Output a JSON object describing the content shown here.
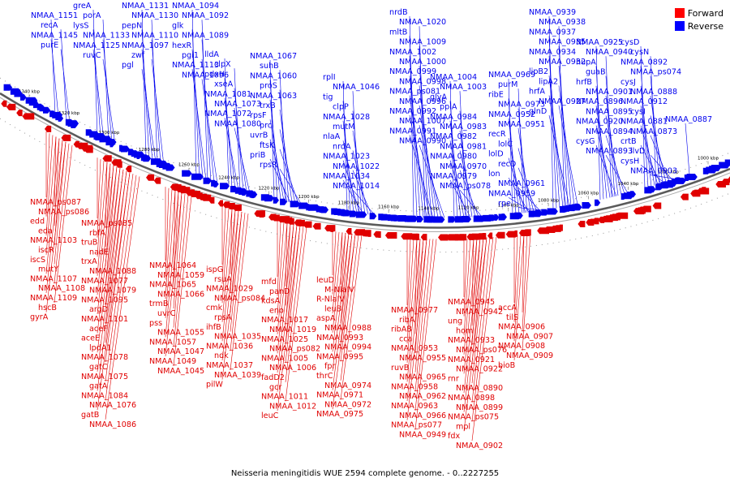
{
  "title": "Neisseria meningitidis WUE 2594 complete genome. - 0..2227255",
  "legend": [
    {
      "label": "Forward",
      "color": "#ff0000"
    },
    {
      "label": "Reverse",
      "color": "#0000ff"
    }
  ],
  "colors": {
    "forward": "#e00000",
    "reverse": "#0000ee",
    "backbone": "#666666"
  },
  "ticks": [
    "1340 kbp",
    "1320 kbp",
    "1300 kbp",
    "1280 kbp",
    "1260 kbp",
    "1240 kbp",
    "1220 kbp",
    "1200 kbp",
    "1180 kbp",
    "1160 kbp",
    "1140 kbp",
    "1120 kbp",
    "1100 kbp",
    "1080 kbp",
    "1060 kbp",
    "1040 kbp",
    "1020 kbp",
    "1000 kbp"
  ],
  "reverse_labels": [
    "NMAA_1151",
    "recA",
    "NMAA_1145",
    "purE",
    "greA",
    "porA",
    "lysS",
    "NMAA_1133",
    "NMAA_1125",
    "ruvC",
    "NMAA_1131",
    "NMAA_1130",
    "pepN",
    "NMAA_1110",
    "NMAA_1097",
    "zwf",
    "pgl",
    "NMAA_1094",
    "NMAA_1092",
    "glk",
    "NMAA_1089",
    "hexR",
    "pgi1",
    "NMAA_1113",
    "NMAA_1096",
    "lldA",
    "clpX",
    "pdxH",
    "xseA",
    "NMAA_1081",
    "NMAA_1073",
    "NMAA_1072",
    "NMAA_1080",
    "NMAA_1067",
    "suhB",
    "NMAA_1060",
    "proS",
    "NMAA_1063",
    "trxB",
    "rpsF",
    "prc",
    "uvrB",
    "ftsK",
    "priB",
    "rpsR",
    "rplI",
    "NMAA_1046",
    "tig",
    "clpP",
    "NMAA_1028",
    "mutM",
    "nlaA",
    "nrdA",
    "NMAA_1023",
    "NMAA_1022",
    "NMAA_1034",
    "NMAA_1014",
    "nrdB",
    "NMAA_1020",
    "mltB",
    "NMAA_1009",
    "NMAA_1002",
    "NMAA_1000",
    "NMAA_0999",
    "NMAA_0998",
    "NMAA_ps081",
    "NMAA_0996",
    "NMAA_0992",
    "NMAA_1007",
    "NMAA_0991",
    "NMAA_0990",
    "NMAA_1004",
    "NMAA_1003",
    "glyA",
    "ppiA",
    "NMAA_0984",
    "NMAA_0983",
    "NMAA_0982",
    "NMAA_0981",
    "NMAA_0980",
    "NMAA_0970",
    "NMAA_0979",
    "NMAA_ps078",
    "NMAA_0969",
    "purM",
    "ribE",
    "NMAA_0973",
    "NMAA_0952",
    "NMAA_0951",
    "recR",
    "lolC",
    "lolD",
    "recD",
    "lon",
    "NMAA_0961",
    "NMAA_0959",
    "rpe",
    "NMAA_0939",
    "NMAA_0938",
    "NMAA_0937",
    "NMAA_0935",
    "NMAA_0934",
    "NMAA_0932",
    "lipB2",
    "lipA2",
    "hrfA",
    "NMAA_0927",
    "glnD",
    "NMAA_0925",
    "NMAA_0940",
    "hupA",
    "guaB",
    "hrfB",
    "NMAA_0901",
    "NMAA_0896",
    "NMAA_0895",
    "NMAA_0920",
    "NMAA_0894",
    "cysG",
    "NMAA_0893",
    "cysD",
    "cysN",
    "NMAA_0892",
    "NMAA_ps074",
    "cysJ",
    "NMAA_0888",
    "NMAA_0912",
    "cysI",
    "NMAA_0881",
    "NMAA_0873",
    "crtB",
    "ilvD",
    "cysH",
    "NMAA_0903",
    "NMAA_0887"
  ],
  "forward_labels": [
    "NMAA_ps087",
    "NMAA_ps086",
    "edd",
    "eda",
    "NMAA_1103",
    "iscR",
    "iscS",
    "mutY",
    "NMAA_1107",
    "NMAA_1108",
    "NMAA_1109",
    "hscB",
    "gyrA",
    "NMAA_ps085",
    "rbfA",
    "truB",
    "nadE",
    "trxA",
    "NMAA_1088",
    "NMAA_1077",
    "NMAA_1079",
    "NMAA_1095",
    "argD",
    "NMAA_1101",
    "aceF",
    "aceE",
    "lpdA1",
    "NMAA_1078",
    "gatC",
    "NMAA_1075",
    "gatA",
    "NMAA_1084",
    "NMAA_1076",
    "gatB",
    "NMAA_1086",
    "NMAA_1064",
    "NMAA_1059",
    "NMAA_1065",
    "NMAA_1066",
    "trmB",
    "uvrC",
    "pss",
    "NMAA_1055",
    "NMAA_1057",
    "NMAA_1047",
    "NMAA_1049",
    "NMAA_1045",
    "ispG",
    "rsuA",
    "NMAA_1029",
    "NMAA_ps084",
    "cmk",
    "rpsA",
    "ihfB",
    "NMAA_1035",
    "NMAA_1036",
    "ndk",
    "NMAA_1037",
    "NMAA_1039",
    "pilW",
    "mfd",
    "panD",
    "kdsA",
    "eno",
    "NMAA_1017",
    "NMAA_1019",
    "NMAA_1025",
    "NMAA_ps082",
    "NMAA_1005",
    "NMAA_1006",
    "fadD2",
    "gcr",
    "NMAA_1011",
    "NMAA_1012",
    "leuC",
    "leuD",
    "M-NlaIV",
    "R-NlaIV",
    "leuB",
    "aspA",
    "NMAA_0988",
    "NMAA_0993",
    "NMAA_0994",
    "NMAA_0995",
    "fpr",
    "thrC",
    "NMAA_0974",
    "NMAA_0971",
    "NMAA_0972",
    "NMAA_0975",
    "NMAA_0977",
    "ribA",
    "ribAB",
    "cca",
    "NMAA_0953",
    "NMAA_0955",
    "ruvB",
    "NMAA_0965",
    "NMAA_0958",
    "NMAA_0962",
    "NMAA_0963",
    "NMAA_0966",
    "NMAA_ps077",
    "NMAA_0949",
    "NMAA_0945",
    "NMAA_0942",
    "ung",
    "hom",
    "NMAA_0933",
    "NMAA_ps076",
    "NMAA_0921",
    "NMAA_0922",
    "rnr",
    "NMAA_0890",
    "NMAA_0898",
    "NMAA_0899",
    "NMAA_ps075",
    "mpl",
    "fdx",
    "NMAA_0902",
    "accA",
    "tilS",
    "NMAA_0906",
    "NMAA_0907",
    "NMAA_0908",
    "NMAA_0909",
    "bioB"
  ]
}
